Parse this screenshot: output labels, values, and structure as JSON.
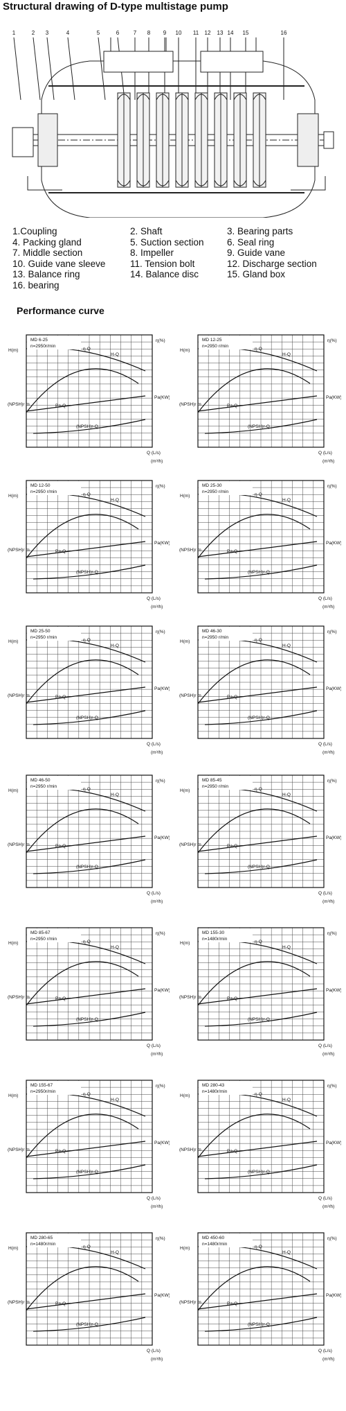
{
  "page": {
    "title": "Structural drawing of D-type multistage pump",
    "perf_title": "Performance curve"
  },
  "drawing": {
    "callouts": [
      "1",
      "2",
      "3",
      "4",
      "5",
      "6",
      "7",
      "8",
      "9",
      "10",
      "11",
      "12",
      "13",
      "14",
      "15",
      "16"
    ]
  },
  "parts": [
    [
      "1.Coupling",
      "2. Shaft",
      "3. Bearing parts"
    ],
    [
      "4. Packing gland",
      "5. Suction section",
      "6. Seal ring"
    ],
    [
      "7. Middle section",
      "8. Impeller",
      "9. Guide vane"
    ],
    [
      "10. Guide vane sleeve",
      "11. Tension bolt",
      "12. Discharge section"
    ],
    [
      "13. Balance ring",
      "14. Balance disc",
      "15. Gland box"
    ],
    [
      "16. bearing"
    ]
  ],
  "charts": [
    {
      "model": "MD 6-25",
      "speed": "n=2950r/min"
    },
    {
      "model": "MD 12-25",
      "speed": "n=2950 r/min"
    },
    {
      "model": "MD 12-50",
      "speed": "n=2950 r/min"
    },
    {
      "model": "MD 25-30",
      "speed": "n=2950 r/min"
    },
    {
      "model": "MD 25-50",
      "speed": "n=2950 r/min"
    },
    {
      "model": "MD 46-30",
      "speed": "n=2950 r/min"
    },
    {
      "model": "MD 46-50",
      "speed": "n=2950 r/min"
    },
    {
      "model": "MD 85-45",
      "speed": "n=2950 r/min"
    },
    {
      "model": "MD 85-67",
      "speed": "n=2950 r/min"
    },
    {
      "model": "MD 155-30",
      "speed": "n=1480r/min"
    },
    {
      "model": "MD 155-67",
      "speed": "n=2950r/min"
    },
    {
      "model": "MD 280-43",
      "speed": "n=1480r/min"
    },
    {
      "model": "MD 280-65",
      "speed": "n=1480r/min"
    },
    {
      "model": "MD 450-60",
      "speed": "n=1480r/min"
    }
  ],
  "chart_labels": {
    "head_axis": "H(m)",
    "eff_axis": "η(%)",
    "npsh_axis": "(NPSH)r m",
    "power_axis": "Pa(KW)",
    "q_ls": "Q (L/s)",
    "q_m3h": "(m³/h)",
    "curve_h": "H-Q",
    "curve_eff": "η-Q",
    "curve_pa": "Pa-Q",
    "curve_npsh": "(NPSH)r-Q"
  }
}
